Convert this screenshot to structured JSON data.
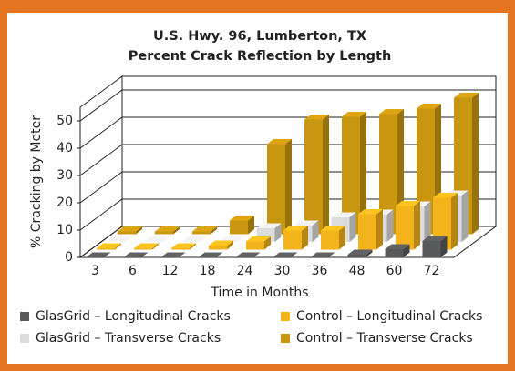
{
  "chart_data": {
    "type": "bar3d",
    "title": "U.S. Hwy. 96, Lumberton, TX",
    "subtitle": "Percent Crack Reflection by Length",
    "x_label": "Time in Months",
    "y_label": "% Cracking by Meter",
    "categories": [
      "3",
      "6",
      "12",
      "18",
      "24",
      "30",
      "36",
      "48",
      "60",
      "72"
    ],
    "series": [
      {
        "name": "GlasGrid – Longitudinal Cracks",
        "color": "#58595b",
        "values": [
          0,
          0,
          0,
          0,
          0,
          0,
          0,
          1,
          3,
          6
        ]
      },
      {
        "name": "Control – Longitudinal Cracks",
        "color": "#f2b31b",
        "values": [
          0.5,
          0.5,
          0.5,
          1.5,
          3,
          7,
          7,
          13,
          16,
          19
        ]
      },
      {
        "name": "GlasGrid – Transverse Cracks",
        "color": "#dcdcdc",
        "values": [
          0,
          0,
          0,
          0,
          5,
          6,
          9,
          10,
          13,
          17
        ]
      },
      {
        "name": "Control – Transverse Cracks",
        "color": "#c9960f",
        "values": [
          1,
          1,
          1,
          5,
          33,
          42,
          43,
          44,
          46,
          50
        ]
      }
    ],
    "ylim": [
      0,
      55
    ],
    "yticks": [
      0,
      10,
      20,
      30,
      40,
      50
    ],
    "grid": true
  }
}
